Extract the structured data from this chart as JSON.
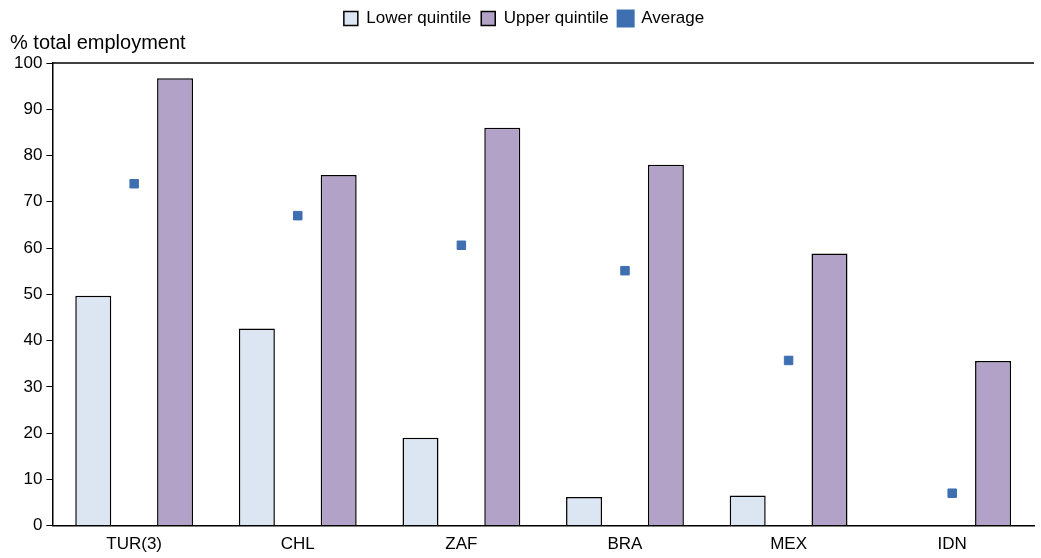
{
  "chart_data": {
    "type": "bar",
    "ylabel": "% total employment",
    "categories": [
      "TUR(3)",
      "CHL",
      "ZAF",
      "BRA",
      "MEX",
      "IDN"
    ],
    "series": [
      {
        "name": "Lower quintile",
        "color": "#dce6f2",
        "values": [
          49.7,
          42.6,
          19.0,
          6.2,
          6.5,
          null
        ]
      },
      {
        "name": "Upper quintile",
        "color": "#b3a2c7",
        "values": [
          96.7,
          75.8,
          86.0,
          78.0,
          58.8,
          35.6
        ]
      },
      {
        "name": "Average",
        "type": "scatter",
        "marker": "square",
        "color": "#3e6fb0",
        "x": [
          "TUR(3)",
          "CHL",
          "ZAF",
          "BRA",
          "MEX",
          "IDN"
        ],
        "values": [
          73.9,
          67.0,
          60.6,
          55.1,
          35.7,
          7.0
        ]
      }
    ],
    "ylim": [
      0,
      100
    ],
    "yticks": [
      0,
      10,
      20,
      30,
      40,
      50,
      60,
      70,
      80,
      90,
      100
    ],
    "grid": false,
    "legend": "top"
  }
}
